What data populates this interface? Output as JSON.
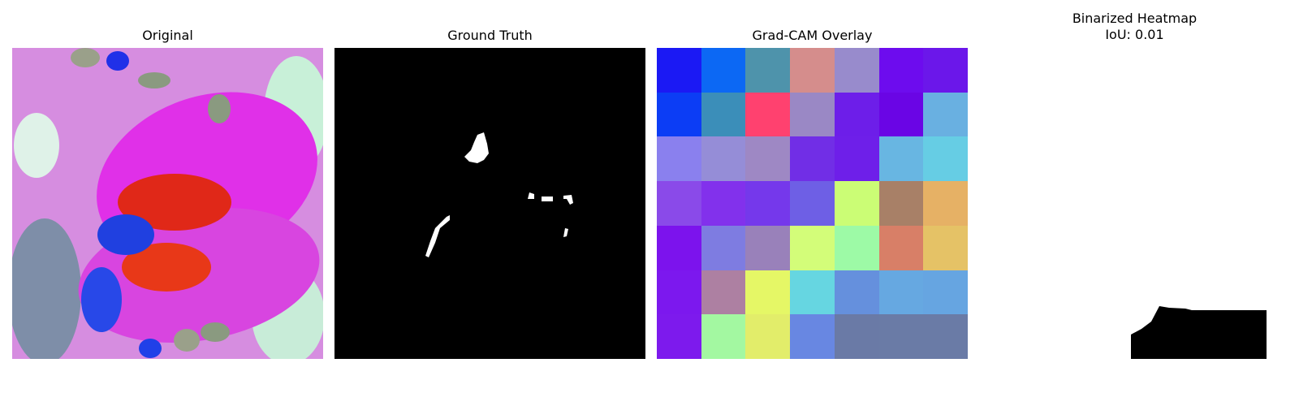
{
  "panels": {
    "original": {
      "title": "Original"
    },
    "ground_truth": {
      "title": "Ground Truth"
    },
    "gradcam": {
      "title": "Grad-CAM Overlay",
      "grid": [
        [
          "#1b19f4",
          "#0c68f4",
          "#4e93ab",
          "#d58d8c",
          "#988bcc",
          "#6d0cee",
          "#6b17ea"
        ],
        [
          "#0c3df5",
          "#3b8eb9",
          "#ff416f",
          "#9a88c5",
          "#6d1ee9",
          "#6a05e5",
          "#69b0e1"
        ],
        [
          "#8a80ee",
          "#958dd7",
          "#9e88c4",
          "#712ee6",
          "#6e1fe9",
          "#68b6e2",
          "#66cde4"
        ],
        [
          "#8a4ae9",
          "#8231ec",
          "#7538eb",
          "#6e5fe5",
          "#cbfd75",
          "#a88067",
          "#e6b165"
        ],
        [
          "#7c13ed",
          "#7e7ce1",
          "#9981ba",
          "#d3fd79",
          "#9dfaa6",
          "#d87f67",
          "#e5c266"
        ],
        [
          "#7c18ee",
          "#ad80a2",
          "#e5f766",
          "#66d6e1",
          "#6590dd",
          "#66a8e1",
          "#66a5e1"
        ],
        [
          "#7d1aed",
          "#a3f8a1",
          "#e2ed6a",
          "#6887e2",
          "#6a7aa6",
          "#6a7ba6",
          "#6a7ba6"
        ]
      ]
    },
    "binarized": {
      "title": "Binarized Heatmap\nIoU: 0.01"
    }
  }
}
